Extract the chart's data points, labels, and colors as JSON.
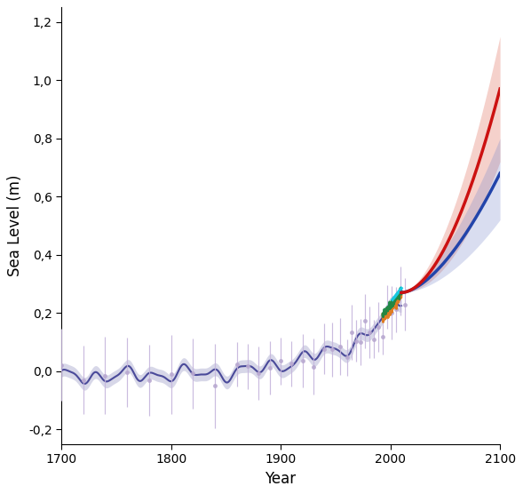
{
  "xlim": [
    1700,
    2100
  ],
  "ylim": [
    -0.25,
    1.25
  ],
  "yticks": [
    -0.2,
    0.0,
    0.2,
    0.4,
    0.6,
    0.8,
    1.0,
    1.2
  ],
  "xticks": [
    1700,
    1800,
    1900,
    2000,
    2100
  ],
  "xlabel": "Year",
  "ylabel": "Sea Level (m)",
  "background_color": "#ffffff",
  "tide_gauge_color": "#4a4a9a",
  "tide_gauge_lw": 1.5,
  "tide_gauge_band_alpha": 0.22,
  "proxy_dot_color": "#b8a8d0",
  "proxy_errorbar_color": "#c5b5dc",
  "proxy_dot_size": 3.5,
  "satellite_orange_color": "#e07818",
  "satellite_green_color": "#1a8844",
  "satellite_cyan_color": "#18c8e0",
  "future_high_color": "#cc1111",
  "future_high_fill": "#e07060",
  "future_high_fill_alpha": 0.32,
  "future_low_color": "#2244aa",
  "future_low_fill": "#7788cc",
  "future_low_fill_alpha": 0.28,
  "figsize": [
    5.89,
    5.56
  ],
  "dpi": 100
}
